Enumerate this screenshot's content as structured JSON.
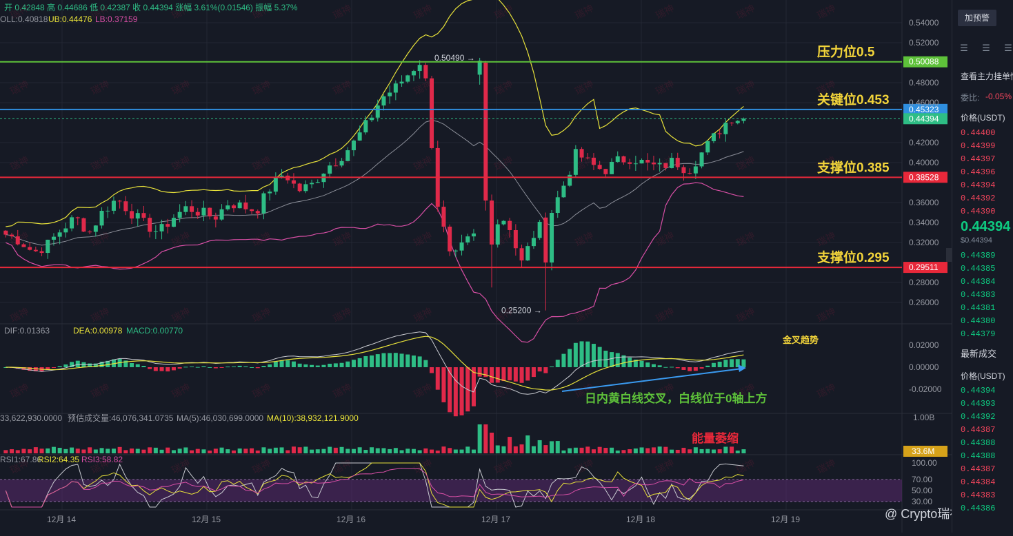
{
  "header": {
    "ohlc_line": "开 0.42848  高 0.44686  低 0.42387  收 0.44394  涨幅 3.61%(0.01546)  振幅 5.37%",
    "boll_mid": "OLL:0.40818",
    "boll_ub": "UB:0.44476",
    "boll_lb": "LB:0.37159"
  },
  "price_axis": {
    "ticks": [
      "0.54000",
      "0.52000",
      "0.48000",
      "0.46000",
      "0.42000",
      "0.40000",
      "0.36000",
      "0.34000",
      "0.32000",
      "0.28000",
      "0.26000"
    ],
    "tick_values": [
      0.54,
      0.52,
      0.48,
      0.46,
      0.42,
      0.4,
      0.36,
      0.34,
      0.32,
      0.28,
      0.26
    ]
  },
  "levels": [
    {
      "name": "resistance",
      "label": "压力位0.5",
      "price": 0.50088,
      "tag": "0.50088",
      "color": "#5ec23a"
    },
    {
      "name": "key",
      "label": "关键位0.453",
      "price": 0.45323,
      "tag": "0.45323",
      "color": "#2f8fe0"
    },
    {
      "name": "support-1",
      "label": "支撑位0.385",
      "price": 0.38528,
      "tag": "0.38528",
      "color": "#e8283a"
    },
    {
      "name": "support-2",
      "label": "支撑位0.295",
      "price": 0.29511,
      "tag": "0.29511",
      "color": "#e8283a"
    }
  ],
  "current_price": {
    "price": 0.44394,
    "tag": "0.44394"
  },
  "annotations": {
    "high_label": "0.50490",
    "low_label": "0.25200",
    "golden_cross": "金叉趋势",
    "macd_note": "日内黄白线交叉，白线位于0轴上方",
    "volume_note": "能量萎缩"
  },
  "macd": {
    "legend": {
      "dif": "DIF:0.01363",
      "dea": "DEA:0.00978",
      "macd": "MACD:0.00770"
    },
    "ticks": [
      "0.02000",
      "0.00000",
      "-0.02000"
    ]
  },
  "volume": {
    "legend": {
      "vol": "33,622,930.0000",
      "predict": "预估成交量:46,076,341.0735",
      "ma5": "MA(5):46,030,699.0000",
      "ma10": "MA(10):38,932,121.9000"
    },
    "ticks": [
      "1.00B"
    ],
    "current_tag": "33.6M"
  },
  "rsi": {
    "legend": {
      "rsi1": "RSI1:67.86",
      "rsi2": "RSI2:64.35",
      "rsi3": "RSI3:58.82"
    },
    "ticks": [
      "100.00",
      "70.00",
      "50.00",
      "30.00"
    ]
  },
  "time_axis": [
    "12月 14",
    "12月 15",
    "12月 16",
    "12月 17",
    "12月 18",
    "12月 19"
  ],
  "watermark_text": "瑞神",
  "brand": "@ Crypto瑞神",
  "sidebar": {
    "alert_button": "加预警",
    "title": "查看主力挂单情",
    "ratio_label": "委比:",
    "ratio_value": "-0.05%",
    "price_header": "价格(USDT)",
    "asks": [
      "0.44400",
      "0.44399",
      "0.44397",
      "0.44396",
      "0.44394",
      "0.44392",
      "0.44390"
    ],
    "last_price": "0.44394",
    "last_price_sub": "$0.44394",
    "bids": [
      "0.44389",
      "0.44385",
      "0.44384",
      "0.44383",
      "0.44381",
      "0.44380",
      "0.44379"
    ],
    "trades_title": "最新成交",
    "trades_header": "价格(USDT)",
    "trades": [
      {
        "p": "0.44394",
        "c": "green"
      },
      {
        "p": "0.44393",
        "c": "green"
      },
      {
        "p": "0.44392",
        "c": "green"
      },
      {
        "p": "0.44387",
        "c": "red"
      },
      {
        "p": "0.44388",
        "c": "green"
      },
      {
        "p": "0.44388",
        "c": "green"
      },
      {
        "p": "0.44387",
        "c": "red"
      },
      {
        "p": "0.44384",
        "c": "red"
      },
      {
        "p": "0.44383",
        "c": "red"
      },
      {
        "p": "0.44386",
        "c": "green"
      }
    ]
  },
  "chart_data": {
    "type": "candlestick",
    "title": "",
    "series_anchor_closes": [
      0.328,
      0.322,
      0.31,
      0.318,
      0.333,
      0.345,
      0.33,
      0.352,
      0.364,
      0.35,
      0.338,
      0.33,
      0.345,
      0.355,
      0.35,
      0.345,
      0.36,
      0.356,
      0.352,
      0.375,
      0.39,
      0.372,
      0.378,
      0.395,
      0.405,
      0.42,
      0.44,
      0.465,
      0.475,
      0.49,
      0.505,
      0.36,
      0.3,
      0.32,
      0.33,
      0.338,
      0.345,
      0.298,
      0.33,
      0.345,
      0.375,
      0.41,
      0.398,
      0.392,
      0.402,
      0.405,
      0.398,
      0.395,
      0.402,
      0.392,
      0.41,
      0.428,
      0.445,
      0.44394
    ],
    "ylim": [
      0.24,
      0.55
    ],
    "high": 0.5049,
    "low": 0.252,
    "x_labels": [
      "12月 14",
      "12月 15",
      "12月 16",
      "12月 17",
      "12月 18",
      "12月 19"
    ]
  }
}
